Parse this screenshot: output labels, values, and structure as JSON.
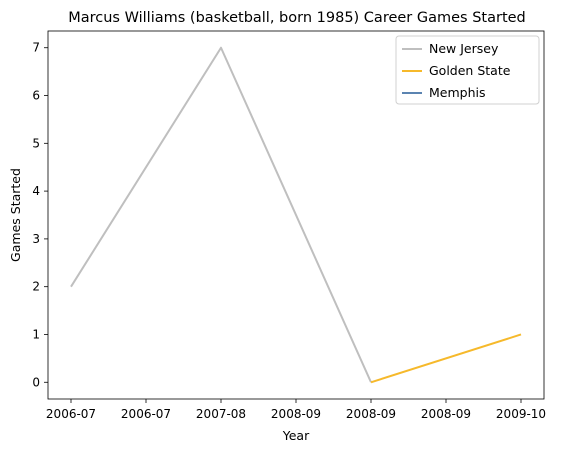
{
  "chart_data": {
    "type": "line",
    "title": "Marcus Williams (basketball, born 1985) Career Games Started",
    "xlabel": "Year",
    "ylabel": "Games Started",
    "x_tick_labels": [
      "2006-07",
      "2006-07",
      "2007-08",
      "2008-09",
      "2008-09",
      "2008-09",
      "2009-10"
    ],
    "y_ticks": [
      0,
      1,
      2,
      3,
      4,
      5,
      6,
      7
    ],
    "ylim": [
      -0.35,
      7.35
    ],
    "grid": false,
    "legend_position": "top-right",
    "series": [
      {
        "name": "New Jersey",
        "color": "#bfbfbf",
        "points": [
          {
            "x": "2006-07",
            "y": 2
          },
          {
            "x": "2007-08",
            "y": 7
          },
          {
            "x": "2008-09",
            "y": 0
          }
        ]
      },
      {
        "name": "Golden State",
        "color": "#f6b92b",
        "points": [
          {
            "x": "2008-09",
            "y": 0
          },
          {
            "x": "2009-10",
            "y": 1
          }
        ]
      },
      {
        "name": "Memphis",
        "color": "#5b84b1",
        "points": []
      }
    ]
  }
}
